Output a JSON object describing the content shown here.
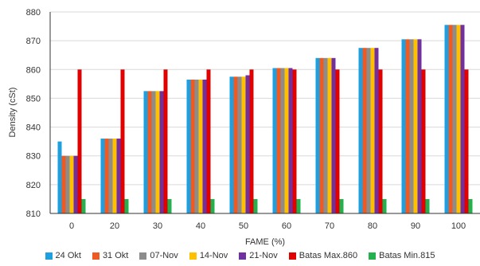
{
  "chart_data": {
    "type": "bar",
    "title": "",
    "xlabel": "FAME (%)",
    "ylabel": "Density (cSt)",
    "ylim": [
      810,
      880
    ],
    "yticks": [
      810,
      820,
      830,
      840,
      850,
      860,
      870,
      880
    ],
    "categories": [
      "0",
      "20",
      "30",
      "40",
      "50",
      "60",
      "70",
      "80",
      "90",
      "100"
    ],
    "legend_position": "bottom",
    "series": [
      {
        "name": "24 Okt",
        "color": "#1E9FE0",
        "values": [
          835,
          836,
          852.5,
          856.5,
          857.5,
          860.5,
          864,
          867.5,
          870.5,
          875.5
        ]
      },
      {
        "name": "31 Okt",
        "color": "#EE5A24",
        "values": [
          830,
          836,
          852.5,
          856.5,
          857.5,
          860.5,
          864,
          867.5,
          870.5,
          875.5
        ]
      },
      {
        "name": "07-Nov",
        "color": "#8C8C8C",
        "values": [
          830,
          836,
          852.5,
          856.5,
          857.5,
          860.5,
          864,
          867.5,
          870.5,
          875.5
        ]
      },
      {
        "name": "14-Nov",
        "color": "#FFC000",
        "values": [
          830,
          836,
          852.5,
          856.5,
          857.5,
          860.5,
          864,
          867.5,
          870.5,
          875.5
        ]
      },
      {
        "name": "21-Nov",
        "color": "#7030A0",
        "values": [
          830,
          836,
          852.5,
          856.5,
          858,
          860.5,
          864,
          867.5,
          870.5,
          875.5
        ]
      },
      {
        "name": "Batas Max.860",
        "color": "#E00000",
        "values": [
          860,
          860,
          860,
          860,
          860,
          860,
          860,
          860,
          860,
          860
        ]
      },
      {
        "name": "Batas Min.815",
        "color": "#22B14C",
        "values": [
          815,
          815,
          815,
          815,
          815,
          815,
          815,
          815,
          815,
          815
        ]
      }
    ]
  }
}
